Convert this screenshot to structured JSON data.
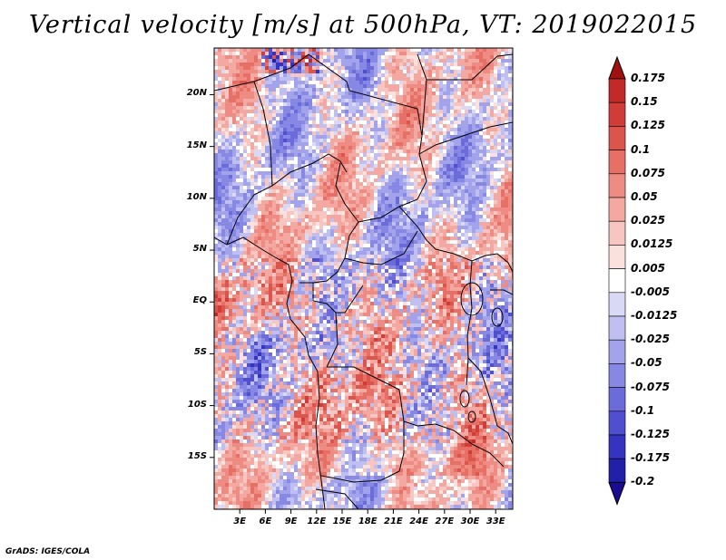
{
  "title": "Vertical velocity [m/s] at 500hPa, VT: 2019022015",
  "credit": "GrADS: IGES/COLA",
  "map": {
    "variable": "vertical velocity",
    "units": "m/s",
    "level": "500hPa",
    "valid_time": "2019022015",
    "lon_range": [
      0,
      35
    ],
    "lat_range": [
      -20,
      24.5
    ],
    "lat_ticks": [
      {
        "value": 20,
        "label": "20N"
      },
      {
        "value": 15,
        "label": "15N"
      },
      {
        "value": 10,
        "label": "10N"
      },
      {
        "value": 5,
        "label": "5N"
      },
      {
        "value": 0,
        "label": "EQ"
      },
      {
        "value": -5,
        "label": "5S"
      },
      {
        "value": -10,
        "label": "10S"
      },
      {
        "value": -15,
        "label": "15S"
      }
    ],
    "lon_ticks": [
      {
        "value": 3,
        "label": "3E"
      },
      {
        "value": 6,
        "label": "6E"
      },
      {
        "value": 9,
        "label": "9E"
      },
      {
        "value": 12,
        "label": "12E"
      },
      {
        "value": 15,
        "label": "15E"
      },
      {
        "value": 18,
        "label": "18E"
      },
      {
        "value": 21,
        "label": "21E"
      },
      {
        "value": 24,
        "label": "24E"
      },
      {
        "value": 27,
        "label": "27E"
      },
      {
        "value": 30,
        "label": "30E"
      },
      {
        "value": 33,
        "label": "33E"
      }
    ]
  },
  "colorbar": {
    "levels": [
      {
        "label": "0.175",
        "color": "#b01a1a"
      },
      {
        "label": "0.15",
        "color": "#c12a28"
      },
      {
        "label": "0.125",
        "color": "#d03d38"
      },
      {
        "label": "0.1",
        "color": "#dc554d"
      },
      {
        "label": "0.075",
        "color": "#e77066"
      },
      {
        "label": "0.05",
        "color": "#ee8c84"
      },
      {
        "label": "0.025",
        "color": "#f3a9a2"
      },
      {
        "label": "0.0125",
        "color": "#f7c6c1"
      },
      {
        "label": "0.005",
        "color": "#fbe1de"
      },
      {
        "label": "-0.005",
        "color": "#ffffff"
      },
      {
        "label": "-0.0125",
        "color": "#d9d9f6"
      },
      {
        "label": "-0.025",
        "color": "#bfbff2"
      },
      {
        "label": "-0.05",
        "color": "#a3a3ec"
      },
      {
        "label": "-0.075",
        "color": "#8787e4"
      },
      {
        "label": "-0.1",
        "color": "#6b6bda"
      },
      {
        "label": "-0.125",
        "color": "#4f4fcf"
      },
      {
        "label": "-0.175",
        "color": "#3434c0"
      },
      {
        "label": "-0.2",
        "color": "#2020a8"
      }
    ],
    "top_arrow_color": "#a01010",
    "bottom_arrow_color": "#180c90"
  }
}
